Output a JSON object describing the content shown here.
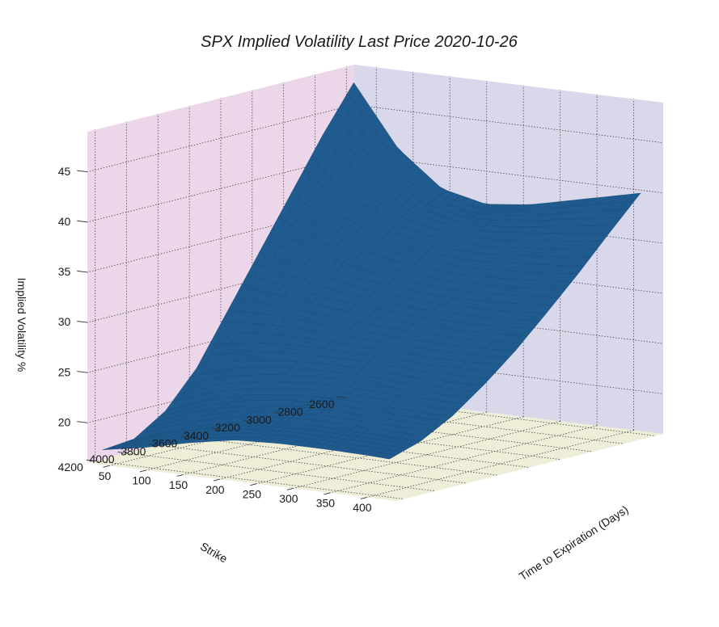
{
  "chart_data": {
    "type": "surface3d",
    "title": "SPX Implied Volatility Last Price 2020-10-26",
    "xlabel": "Strike",
    "ylabel": "Time to Expiration (Days)",
    "zlabel": "Implied Volatility %",
    "xlim": [
      2550,
      4250
    ],
    "ylim": [
      20,
      440
    ],
    "zlim": [
      16,
      49
    ],
    "x_ticks": [
      "2600",
      "2800",
      "3000",
      "3200",
      "3400",
      "3600",
      "3800",
      "4000",
      "4200"
    ],
    "y_ticks": [
      "50",
      "100",
      "150",
      "200",
      "250",
      "300",
      "350",
      "400"
    ],
    "z_ticks": [
      "20",
      "25",
      "30",
      "35",
      "40",
      "45"
    ],
    "strike_grid": [
      2600,
      2800,
      3000,
      3200,
      3400,
      3600,
      3800,
      4000,
      4200
    ],
    "days_grid": [
      30,
      90,
      150,
      210,
      270,
      330,
      390,
      420
    ],
    "iv_surface": [
      [
        47.5,
        41.5,
        38.0,
        37.0,
        37.5,
        38.5,
        39.5,
        40.0
      ],
      [
        43.0,
        39.0,
        36.5,
        35.5,
        35.5,
        36.0,
        36.5,
        36.8
      ],
      [
        38.0,
        35.5,
        33.8,
        33.0,
        32.8,
        33.0,
        33.3,
        33.5
      ],
      [
        33.0,
        31.8,
        30.8,
        30.3,
        30.0,
        30.0,
        30.2,
        30.4
      ],
      [
        28.0,
        28.0,
        27.8,
        27.5,
        27.3,
        27.2,
        27.3,
        27.4
      ],
      [
        23.0,
        24.3,
        24.8,
        25.0,
        24.9,
        24.7,
        24.7,
        24.8
      ],
      [
        19.5,
        21.2,
        22.2,
        22.7,
        22.8,
        22.6,
        22.5,
        22.5
      ],
      [
        17.5,
        19.0,
        20.2,
        20.8,
        21.0,
        20.9,
        20.8,
        20.8
      ],
      [
        17.2,
        18.0,
        19.0,
        19.8,
        20.0,
        20.0,
        19.9,
        19.8
      ]
    ],
    "colors": {
      "surface": "#1f5b8e",
      "surface_edge": "#174a76",
      "left_pane": "#ecd6ea",
      "right_pane": "#d8d8ea",
      "floor": "#ededd8"
    }
  }
}
